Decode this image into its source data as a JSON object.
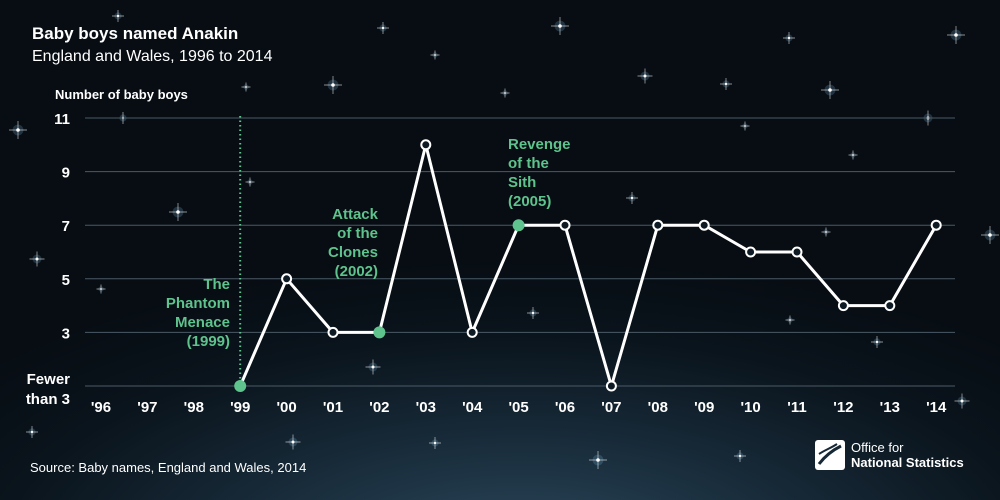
{
  "header": {
    "title": "Baby boys named Anakin",
    "subtitle": "England and Wales, 1996 to 2014"
  },
  "source": "Source: Baby names, England and Wales, 2014",
  "logo": {
    "line1": "Office for",
    "line2": "National Statistics"
  },
  "colors": {
    "line": "#ffffff",
    "highlight": "#5ec38c",
    "grid": "#4a5a66",
    "text": "#ffffff"
  },
  "chart_data": {
    "type": "line",
    "title": "Baby boys named Anakin",
    "subtitle": "England and Wales, 1996 to 2014",
    "ylabel": "Number of baby boys",
    "xlabel": "",
    "ylim": [
      1,
      11
    ],
    "yticks": [
      {
        "value": 11,
        "label": "11"
      },
      {
        "value": 9,
        "label": "9"
      },
      {
        "value": 7,
        "label": "7"
      },
      {
        "value": 5,
        "label": "5"
      },
      {
        "value": 3,
        "label": "3"
      },
      {
        "value": 1,
        "label": "Fewer than 3"
      }
    ],
    "grid": true,
    "categories": [
      "'96",
      "'97",
      "'98",
      "'99",
      "'00",
      "'01",
      "'02",
      "'03",
      "'04",
      "'05",
      "'06",
      "'07",
      "'08",
      "'09",
      "'10",
      "'11",
      "'12",
      "'13",
      "'14"
    ],
    "series": [
      {
        "values": [
          null,
          null,
          null,
          "Fewer than 3",
          5,
          3,
          3,
          10,
          3,
          7,
          7,
          "Fewer than 3",
          7,
          7,
          6,
          6,
          4,
          4,
          7
        ],
        "plot_values": [
          null,
          null,
          null,
          1,
          5,
          3,
          3,
          10,
          3,
          7,
          7,
          1,
          7,
          7,
          6,
          6,
          4,
          4,
          7
        ]
      }
    ],
    "annotations": [
      {
        "index": 3,
        "lines": [
          "The",
          "Phantom",
          "Menace",
          "(1999)"
        ],
        "dotted_marker": true
      },
      {
        "index": 6,
        "lines": [
          "Attack",
          "of the",
          "Clones",
          "(2002)"
        ]
      },
      {
        "index": 9,
        "lines": [
          "Revenge",
          "of the",
          "Sith",
          "(2005)"
        ]
      }
    ]
  }
}
